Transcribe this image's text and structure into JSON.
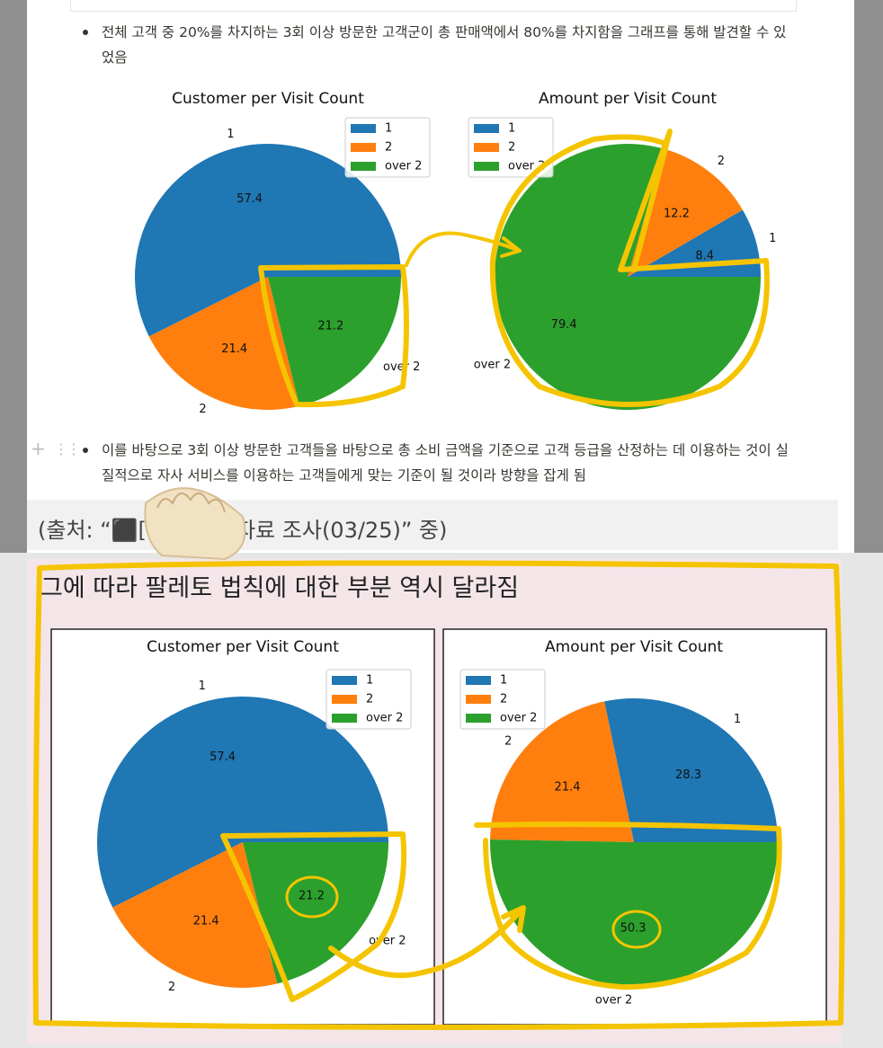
{
  "notes": [
    "전체 고객 중 20%를 차지하는 3회 이상 방문한 고객군이 총 판매액에서 80%를 차지함을 그래프를 통해 발견할 수 있었음",
    "이를 바탕으로 3회 이상 방문한 고객들을 바탕으로 총 소비 금액을 기준으로 고객 등급을 산정하는 데 이용하는 것이 실질적으로 자사 서비스를 이용하는 고객들에게 맞는 기준이 될 것이라 방향을 잡게 됨"
  ],
  "source": {
    "prefix": "(출처: “⬛[",
    "suffix": "자료 조사(03/25)” 중)"
  },
  "heading": "그에 따라 팔레토 법칙에 대한 부분 역시 달라짐",
  "charts": [
    {
      "type": "pie",
      "title": "Customer per Visit Count",
      "categories": [
        "1",
        "2",
        "over 2"
      ],
      "values": [
        57.4,
        21.4,
        21.2
      ],
      "colors": [
        "#1f77b4",
        "#ff7f0e",
        "#2ca02c"
      ]
    },
    {
      "type": "pie",
      "title": "Amount per Visit Count",
      "categories": [
        "1",
        "2",
        "over 2"
      ],
      "values": [
        8.4,
        12.2,
        79.4
      ],
      "colors": [
        "#1f77b4",
        "#ff7f0e",
        "#2ca02c"
      ]
    },
    {
      "type": "pie",
      "title": "Customer per Visit Count",
      "categories": [
        "1",
        "2",
        "over 2"
      ],
      "values": [
        57.4,
        21.4,
        21.2
      ],
      "colors": [
        "#1f77b4",
        "#ff7f0e",
        "#2ca02c"
      ]
    },
    {
      "type": "pie",
      "title": "Amount per Visit Count",
      "categories": [
        "1",
        "2",
        "over 2"
      ],
      "values": [
        28.3,
        21.4,
        50.3
      ],
      "colors": [
        "#1f77b4",
        "#ff7f0e",
        "#2ca02c"
      ]
    }
  ]
}
